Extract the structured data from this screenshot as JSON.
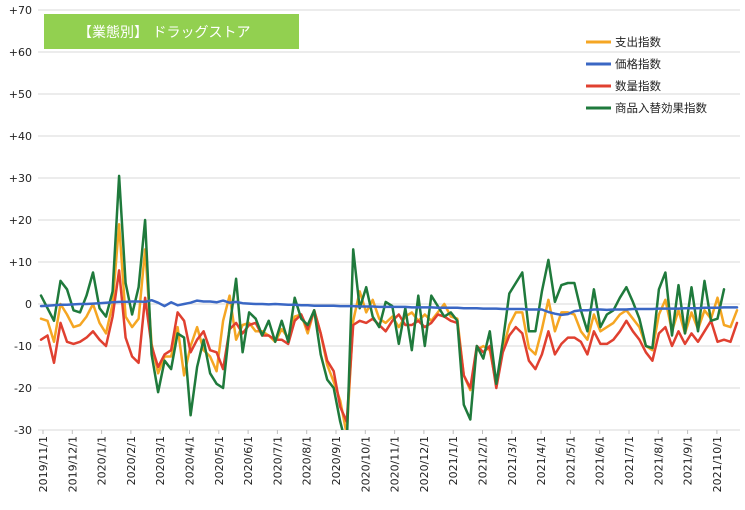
{
  "chart_data": {
    "type": "line",
    "title": "【業態別】 ドラッグストア",
    "ylim": [
      -30,
      70
    ],
    "y_ticks": [
      "+70",
      "+60",
      "+50",
      "+40",
      "+30",
      "+20",
      "+10",
      "0",
      "-10",
      "-20",
      "-30"
    ],
    "grid": "horizontal",
    "legend_position": "top-right",
    "x_tick_labels": [
      "2019/11/1",
      "2019/12/1",
      "2020/1/1",
      "2020/2/1",
      "2020/3/1",
      "2020/4/1",
      "2020/5/1",
      "2020/6/1",
      "2020/7/1",
      "2020/8/1",
      "2020/9/1",
      "2020/10/1",
      "2020/11/1",
      "2020/12/1",
      "2021/1/1",
      "2021/2/1",
      "2021/3/1",
      "2021/4/1",
      "2021/5/1",
      "2021/6/1",
      "2021/7/1",
      "2021/8/1",
      "2021/9/1",
      "2021/10/1"
    ],
    "series": [
      {
        "name": "支出指数",
        "color": "#f5a623",
        "values": [
          -3.5,
          -4.0,
          -9.0,
          0.0,
          -2.5,
          -5.5,
          -5.0,
          -3.0,
          0.0,
          -4.5,
          -7.0,
          0.0,
          19.0,
          -3.0,
          -5.5,
          -3.5,
          13.0,
          -9.5,
          -16.5,
          -12.5,
          -12.5,
          -5.5,
          -17.0,
          -10.0,
          -5.5,
          -11.0,
          -12.5,
          -16.0,
          -4.0,
          2.0,
          -8.5,
          -5.0,
          -4.5,
          -6.5,
          -6.5,
          -7.5,
          -9.0,
          -6.0,
          -8.0,
          -3.0,
          -2.5,
          -7.0,
          -1.5,
          -7.0,
          -14.5,
          -18.5,
          -23.0,
          -31.0,
          -4.0,
          3.0,
          -2.0,
          1.0,
          -3.5,
          -4.5,
          -3.0,
          -5.5,
          -3.0,
          -2.0,
          -4.0,
          -2.5,
          -4.0,
          -2.0,
          0.0,
          -3.0,
          -3.5,
          -17.0,
          -20.5,
          -11.0,
          -10.0,
          -11.0,
          -19.0,
          -11.0,
          -5.0,
          -2.0,
          -2.0,
          -10.5,
          -12.0,
          -6.0,
          1.0,
          -6.5,
          -2.0,
          -2.0,
          -2.5,
          -6.5,
          -8.5,
          -2.5,
          -6.5,
          -5.5,
          -4.5,
          -2.5,
          -1.5,
          -3.5,
          -5.5,
          -10.0,
          -11.0,
          -2.5,
          1.0,
          -6.5,
          -1.5,
          -7.0,
          -2.0,
          -6.0,
          -1.5,
          -3.5,
          1.5,
          -5.0,
          -5.5,
          -1.5
        ]
      },
      {
        "name": "価格指数",
        "color": "#3a67c4",
        "values": [
          -0.5,
          -0.4,
          -0.3,
          -0.2,
          -0.2,
          -0.1,
          0.0,
          0.0,
          0.1,
          0.2,
          0.3,
          0.4,
          0.5,
          0.5,
          0.6,
          0.6,
          0.5,
          0.9,
          0.3,
          -0.5,
          0.4,
          -0.3,
          0.0,
          0.3,
          0.8,
          0.6,
          0.6,
          0.4,
          0.8,
          0.3,
          0.5,
          0.2,
          0.1,
          0.0,
          0.0,
          -0.1,
          0.0,
          -0.1,
          -0.2,
          -0.2,
          -0.3,
          -0.3,
          -0.4,
          -0.4,
          -0.4,
          -0.4,
          -0.5,
          -0.5,
          -0.5,
          -0.6,
          -0.6,
          -0.6,
          -0.7,
          -0.7,
          -0.7,
          -0.7,
          -0.7,
          -0.8,
          -0.8,
          -0.8,
          -0.8,
          -0.9,
          -0.9,
          -0.9,
          -0.9,
          -1.0,
          -1.0,
          -1.0,
          -1.1,
          -1.1,
          -1.1,
          -1.2,
          -1.2,
          -1.2,
          -1.2,
          -1.3,
          -1.3,
          -1.3,
          -1.9,
          -2.3,
          -2.6,
          -2.4,
          -1.7,
          -1.5,
          -1.5,
          -1.3,
          -1.3,
          -1.4,
          -1.3,
          -1.3,
          -1.3,
          -1.2,
          -1.2,
          -1.2,
          -1.2,
          -1.1,
          -1.1,
          -1.1,
          -1.1,
          -1.0,
          -1.0,
          -1.0,
          -0.9,
          -0.9,
          -0.9,
          -0.8,
          -0.8,
          -0.8
        ]
      },
      {
        "name": "数量指数",
        "color": "#e04030",
        "values": [
          -8.5,
          -7.5,
          -14.0,
          -4.5,
          -9.0,
          -9.5,
          -9.0,
          -8.0,
          -6.5,
          -8.5,
          -10.0,
          -3.0,
          8.0,
          -8.0,
          -12.5,
          -14.0,
          1.5,
          -10.0,
          -15.0,
          -12.0,
          -11.0,
          -2.0,
          -4.0,
          -11.5,
          -8.5,
          -6.5,
          -11.0,
          -11.5,
          -15.5,
          -6.0,
          -4.5,
          -7.0,
          -5.0,
          -4.5,
          -7.5,
          -7.5,
          -8.5,
          -8.5,
          -9.5,
          -4.0,
          -2.5,
          -6.0,
          -1.5,
          -7.0,
          -13.5,
          -16.0,
          -24.5,
          -28.0,
          -5.0,
          -4.0,
          -4.5,
          -3.5,
          -5.0,
          -6.5,
          -4.0,
          -2.5,
          -5.0,
          -5.0,
          -4.0,
          -5.5,
          -4.5,
          -2.5,
          -3.0,
          -4.0,
          -4.5,
          -17.0,
          -20.0,
          -10.0,
          -11.5,
          -10.0,
          -20.0,
          -11.5,
          -7.5,
          -5.5,
          -7.0,
          -13.5,
          -15.5,
          -12.0,
          -6.5,
          -12.0,
          -9.5,
          -8.0,
          -8.0,
          -9.0,
          -12.0,
          -6.5,
          -9.5,
          -9.5,
          -8.5,
          -6.5,
          -4.0,
          -6.5,
          -8.5,
          -11.5,
          -13.5,
          -7.0,
          -5.5,
          -10.0,
          -6.5,
          -9.5,
          -7.0,
          -9.0,
          -6.5,
          -4.0,
          -9.0,
          -8.5,
          -9.0,
          -4.5
        ]
      },
      {
        "name": "商品入替効果指数",
        "color": "#1f7a3c",
        "values": [
          2.0,
          -1.0,
          -4.0,
          5.5,
          3.5,
          -1.5,
          -2.0,
          2.0,
          7.5,
          -1.0,
          -3.0,
          3.0,
          30.5,
          5.0,
          -2.5,
          4.0,
          20.0,
          -12.0,
          -21.0,
          -13.5,
          -15.5,
          -7.0,
          -8.0,
          -26.5,
          -15.0,
          -8.5,
          -16.5,
          -19.0,
          -20.0,
          -5.5,
          6.0,
          -11.5,
          -2.0,
          -3.5,
          -7.5,
          -4.0,
          -9.0,
          -4.0,
          -9.0,
          1.5,
          -3.5,
          -5.0,
          -1.5,
          -12.0,
          -18.0,
          -20.0,
          -28.0,
          -34.0,
          13.0,
          -1.0,
          4.0,
          -3.0,
          -5.5,
          0.5,
          -0.5,
          -9.5,
          -1.0,
          -11.0,
          2.0,
          -10.0,
          2.0,
          -0.5,
          -3.0,
          -2.0,
          -4.0,
          -24.0,
          -27.5,
          -10.0,
          -13.0,
          -6.5,
          -19.0,
          -9.0,
          2.5,
          5.0,
          7.5,
          -6.5,
          -6.5,
          3.0,
          10.5,
          0.5,
          4.5,
          5.0,
          5.0,
          -1.5,
          -6.5,
          3.5,
          -5.5,
          -2.5,
          -1.5,
          1.5,
          4.0,
          0.5,
          -3.5,
          -10.0,
          -10.5,
          3.5,
          7.5,
          -7.5,
          4.5,
          -7.0,
          4.0,
          -6.5,
          5.5,
          -4.0,
          -3.5,
          3.5
        ]
      }
    ]
  }
}
